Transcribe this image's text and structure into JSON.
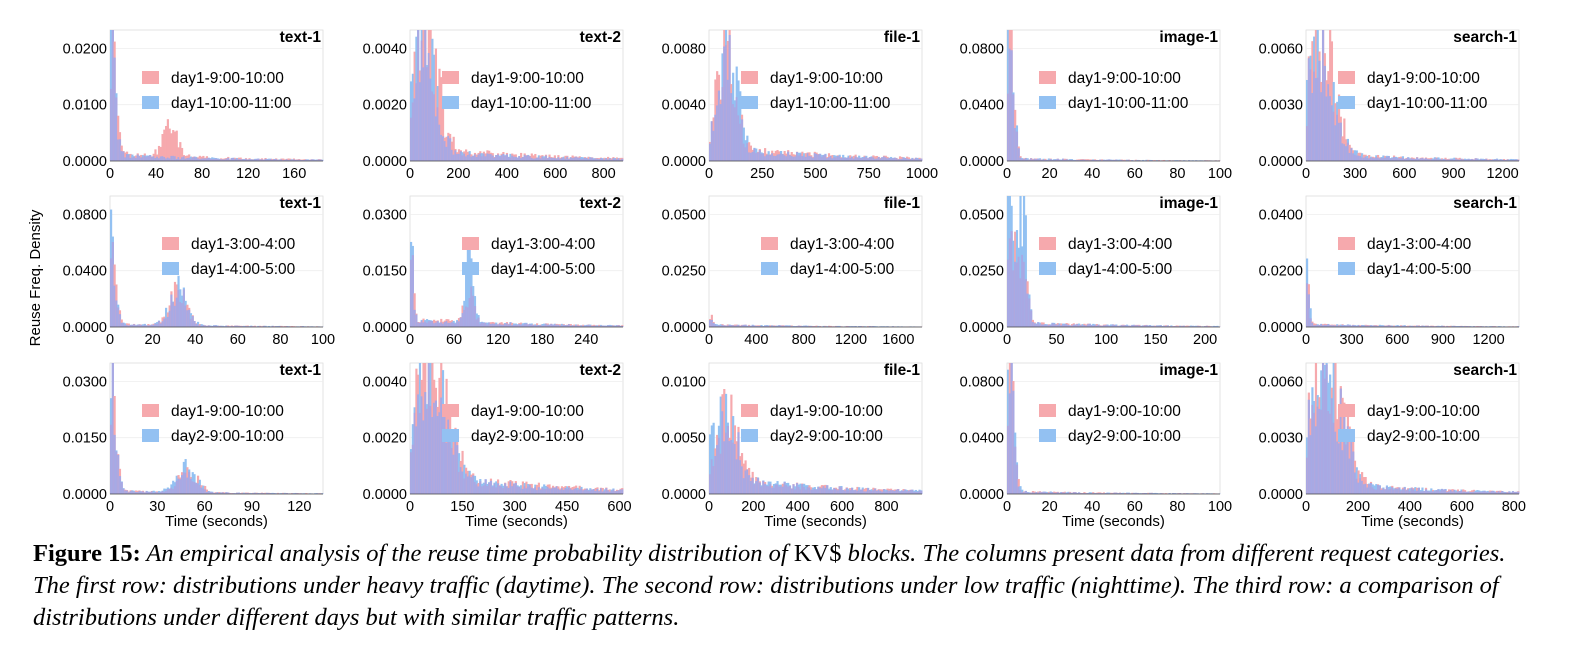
{
  "figure": {
    "ylabel": "Reuse Freq. Density",
    "xlabel": "Time (seconds)",
    "colors": {
      "series_a": "#f6a9ad",
      "series_b": "#93c1f2",
      "overlap": "#a9a8e3"
    }
  },
  "caption": {
    "label": "Figure 15:",
    "text_before": " An empirical analysis of the reuse time probability distribution of ",
    "kv": "KV$",
    "text_after": " blocks. The columns present data from different request categories. The first row: distributions under heavy traffic (daytime). The second row: distributions under low traffic (nighttime). The third row: a comparison of distributions under different days but with similar traffic patterns."
  },
  "chart_data": [
    {
      "type": "area",
      "title": "text-1",
      "row": 1,
      "col": 1,
      "xlim": [
        0,
        185
      ],
      "ylim": [
        0,
        0.027
      ],
      "xticks": [
        "0",
        "40",
        "80",
        "120",
        "160"
      ],
      "yticks": [
        "0.0000",
        "0.0100",
        "0.0200"
      ],
      "series": [
        {
          "name": "day1-9:00-10:00",
          "peaks": [
            [
              0,
              0.026,
              4
            ],
            [
              52,
              0.006,
              6
            ]
          ],
          "tail": 0.0015
        },
        {
          "name": "day1-10:00-11:00",
          "peaks": [
            [
              0,
              0.024,
              4
            ]
          ],
          "tail": 0.0012
        }
      ]
    },
    {
      "type": "area",
      "title": "text-2",
      "row": 1,
      "col": 2,
      "xlim": [
        0,
        880
      ],
      "ylim": [
        0,
        0.0048
      ],
      "xticks": [
        "0",
        "200",
        "400",
        "600",
        "800"
      ],
      "yticks": [
        "0.0000",
        "0.0020",
        "0.0040"
      ],
      "series": [
        {
          "name": "day1-9:00-10:00",
          "peaks": [
            [
              60,
              0.0045,
              50
            ]
          ],
          "tail": 0.0005
        },
        {
          "name": "day1-10:00-11:00",
          "peaks": [
            [
              50,
              0.004,
              50
            ]
          ],
          "tail": 0.0004
        }
      ]
    },
    {
      "type": "area",
      "title": "file-1",
      "row": 1,
      "col": 3,
      "xlim": [
        0,
        1000
      ],
      "ylim": [
        0,
        0.0105
      ],
      "xticks": [
        "0",
        "250",
        "500",
        "750",
        "1000"
      ],
      "yticks": [
        "0.0000",
        "0.0040",
        "0.0080"
      ],
      "series": [
        {
          "name": "day1-9:00-10:00",
          "peaks": [
            [
              80,
              0.0095,
              40
            ]
          ],
          "tail": 0.0012
        },
        {
          "name": "day1-10:00-11:00",
          "peaks": [
            [
              90,
              0.0085,
              40
            ]
          ],
          "tail": 0.001
        }
      ]
    },
    {
      "type": "area",
      "title": "image-1",
      "row": 1,
      "col": 4,
      "xlim": [
        0,
        100
      ],
      "ylim": [
        0,
        0.105
      ],
      "xticks": [
        "0",
        "20",
        "40",
        "60",
        "80",
        "100"
      ],
      "yticks": [
        "0.0000",
        "0.0400",
        "0.0800"
      ],
      "series": [
        {
          "name": "day1-9:00-10:00",
          "peaks": [
            [
              1,
              0.1,
              2
            ]
          ],
          "tail": 0.002
        },
        {
          "name": "day1-10:00-11:00",
          "peaks": [
            [
              1,
              0.095,
              2
            ]
          ],
          "tail": 0.002
        }
      ]
    },
    {
      "type": "area",
      "title": "search-1",
      "row": 1,
      "col": 5,
      "xlim": [
        0,
        1300
      ],
      "ylim": [
        0,
        0.007
      ],
      "xticks": [
        "0",
        "300",
        "600",
        "900",
        "1200"
      ],
      "yticks": [
        "0.0000",
        "0.0030",
        "0.0060"
      ],
      "series": [
        {
          "name": "day1-9:00-10:00",
          "peaks": [
            [
              100,
              0.006,
              80
            ]
          ],
          "tail": 0.0004
        },
        {
          "name": "day1-10:00-11:00",
          "peaks": [
            [
              90,
              0.0055,
              80
            ]
          ],
          "tail": 0.0004
        }
      ]
    },
    {
      "type": "area",
      "title": "text-1",
      "row": 2,
      "col": 1,
      "xlim": [
        0,
        100
      ],
      "ylim": [
        0,
        0.09
      ],
      "xticks": [
        "0",
        "20",
        "40",
        "60",
        "80",
        "100"
      ],
      "yticks": [
        "0.0000",
        "0.0400",
        "0.0800"
      ],
      "series": [
        {
          "name": "day1-3:00-4:00",
          "peaks": [
            [
              0,
              0.085,
              2
            ],
            [
              32,
              0.022,
              4
            ]
          ],
          "tail": 0.002
        },
        {
          "name": "day1-4:00-5:00",
          "peaks": [
            [
              0,
              0.08,
              2
            ],
            [
              32,
              0.024,
              4
            ]
          ],
          "tail": 0.002
        }
      ]
    },
    {
      "type": "area",
      "title": "text-2",
      "row": 2,
      "col": 2,
      "xlim": [
        0,
        290
      ],
      "ylim": [
        0,
        0.036
      ],
      "xticks": [
        "0",
        "60",
        "120",
        "180",
        "240"
      ],
      "yticks": [
        "0.0000",
        "0.0150",
        "0.0300"
      ],
      "series": [
        {
          "name": "day1-3:00-4:00",
          "peaks": [
            [
              0,
              0.034,
              3
            ],
            [
              80,
              0.008,
              6
            ]
          ],
          "tail": 0.002
        },
        {
          "name": "day1-4:00-5:00",
          "peaks": [
            [
              0,
              0.03,
              3
            ],
            [
              80,
              0.015,
              6
            ]
          ],
          "tail": 0.002
        }
      ]
    },
    {
      "type": "area",
      "title": "file-1",
      "row": 2,
      "col": 3,
      "xlim": [
        0,
        1800
      ],
      "ylim": [
        0,
        0.06
      ],
      "xticks": [
        "0",
        "400",
        "800",
        "1200",
        "1600"
      ],
      "yticks": [
        "0.0000",
        "0.0250",
        "0.0500"
      ],
      "series": [
        {
          "name": "day1-3:00-4:00",
          "peaks": [
            [
              0,
              0.006,
              20
            ]
          ],
          "tail": 0.001
        },
        {
          "name": "day1-4:00-5:00",
          "peaks": [
            [
              0,
              0.005,
              20
            ]
          ],
          "tail": 0.001
        }
      ]
    },
    {
      "type": "area",
      "title": "image-1",
      "row": 2,
      "col": 4,
      "xlim": [
        0,
        215
      ],
      "ylim": [
        0,
        0.06
      ],
      "xticks": [
        "0",
        "50",
        "100",
        "150",
        "200"
      ],
      "yticks": [
        "0.0000",
        "0.0250",
        "0.0500"
      ],
      "series": [
        {
          "name": "day1-3:00-4:00",
          "peaks": [
            [
              2,
              0.055,
              4
            ],
            [
              15,
              0.03,
              5
            ]
          ],
          "tail": 0.002
        },
        {
          "name": "day1-4:00-5:00",
          "peaks": [
            [
              2,
              0.05,
              4
            ],
            [
              15,
              0.058,
              4
            ]
          ],
          "tail": 0.002
        }
      ]
    },
    {
      "type": "area",
      "title": "search-1",
      "row": 2,
      "col": 5,
      "xlim": [
        0,
        1400
      ],
      "ylim": [
        0,
        0.048
      ],
      "xticks": [
        "0",
        "300",
        "600",
        "900",
        "1200"
      ],
      "yticks": [
        "0.0000",
        "0.0200",
        "0.0400"
      ],
      "series": [
        {
          "name": "day1-3:00-4:00",
          "peaks": [
            [
              0,
              0.03,
              15
            ]
          ],
          "tail": 0.001
        },
        {
          "name": "day1-4:00-5:00",
          "peaks": [
            [
              0,
              0.025,
              15
            ]
          ],
          "tail": 0.001
        }
      ]
    },
    {
      "type": "area",
      "title": "text-1",
      "row": 3,
      "col": 1,
      "xlim": [
        0,
        135
      ],
      "ylim": [
        0,
        0.034
      ],
      "xticks": [
        "0",
        "30",
        "60",
        "90",
        "120"
      ],
      "yticks": [
        "0.0000",
        "0.0150",
        "0.0300"
      ],
      "series": [
        {
          "name": "day1-9:00-10:00",
          "peaks": [
            [
              0,
              0.032,
              3
            ],
            [
              50,
              0.0055,
              6
            ]
          ],
          "tail": 0.0008
        },
        {
          "name": "day2-9:00-10:00",
          "peaks": [
            [
              0,
              0.03,
              3
            ],
            [
              48,
              0.0065,
              6
            ]
          ],
          "tail": 0.0008
        }
      ]
    },
    {
      "type": "area",
      "title": "text-2",
      "row": 3,
      "col": 2,
      "xlim": [
        0,
        610
      ],
      "ylim": [
        0,
        0.0048
      ],
      "xticks": [
        "0",
        "150",
        "300",
        "450",
        "600"
      ],
      "yticks": [
        "0.0000",
        "0.0020",
        "0.0040"
      ],
      "series": [
        {
          "name": "day1-9:00-10:00",
          "peaks": [
            [
              60,
              0.0044,
              45
            ]
          ],
          "tail": 0.0008
        },
        {
          "name": "day2-9:00-10:00",
          "peaks": [
            [
              55,
              0.004,
              45
            ]
          ],
          "tail": 0.0007
        }
      ]
    },
    {
      "type": "area",
      "title": "file-1",
      "row": 3,
      "col": 3,
      "xlim": [
        0,
        960
      ],
      "ylim": [
        0,
        0.0125
      ],
      "xticks": [
        "0",
        "200",
        "400",
        "600",
        "800"
      ],
      "yticks": [
        "0.0000",
        "0.0050",
        "0.0100"
      ],
      "series": [
        {
          "name": "day1-9:00-10:00",
          "peaks": [
            [
              80,
              0.006,
              50
            ]
          ],
          "tail": 0.0015
        },
        {
          "name": "day2-9:00-10:00",
          "peaks": [
            [
              70,
              0.007,
              50
            ]
          ],
          "tail": 0.0015
        }
      ]
    },
    {
      "type": "area",
      "title": "image-1",
      "row": 3,
      "col": 4,
      "xlim": [
        0,
        100
      ],
      "ylim": [
        0,
        0.105
      ],
      "xticks": [
        "0",
        "20",
        "40",
        "60",
        "80",
        "100"
      ],
      "yticks": [
        "0.0000",
        "0.0400",
        "0.0800"
      ],
      "series": [
        {
          "name": "day1-9:00-10:00",
          "peaks": [
            [
              1,
              0.1,
              2
            ]
          ],
          "tail": 0.002
        },
        {
          "name": "day2-9:00-10:00",
          "peaks": [
            [
              1,
              0.095,
              2
            ]
          ],
          "tail": 0.002
        }
      ]
    },
    {
      "type": "area",
      "title": "search-1",
      "row": 3,
      "col": 5,
      "xlim": [
        0,
        820
      ],
      "ylim": [
        0,
        0.007
      ],
      "xticks": [
        "0",
        "200",
        "400",
        "600",
        "800"
      ],
      "yticks": [
        "0.0000",
        "0.0030",
        "0.0060"
      ],
      "series": [
        {
          "name": "day1-9:00-10:00",
          "peaks": [
            [
              80,
              0.0065,
              60
            ]
          ],
          "tail": 0.0006
        },
        {
          "name": "day2-9:00-10:00",
          "peaks": [
            [
              75,
              0.006,
              60
            ]
          ],
          "tail": 0.0006
        }
      ]
    }
  ]
}
